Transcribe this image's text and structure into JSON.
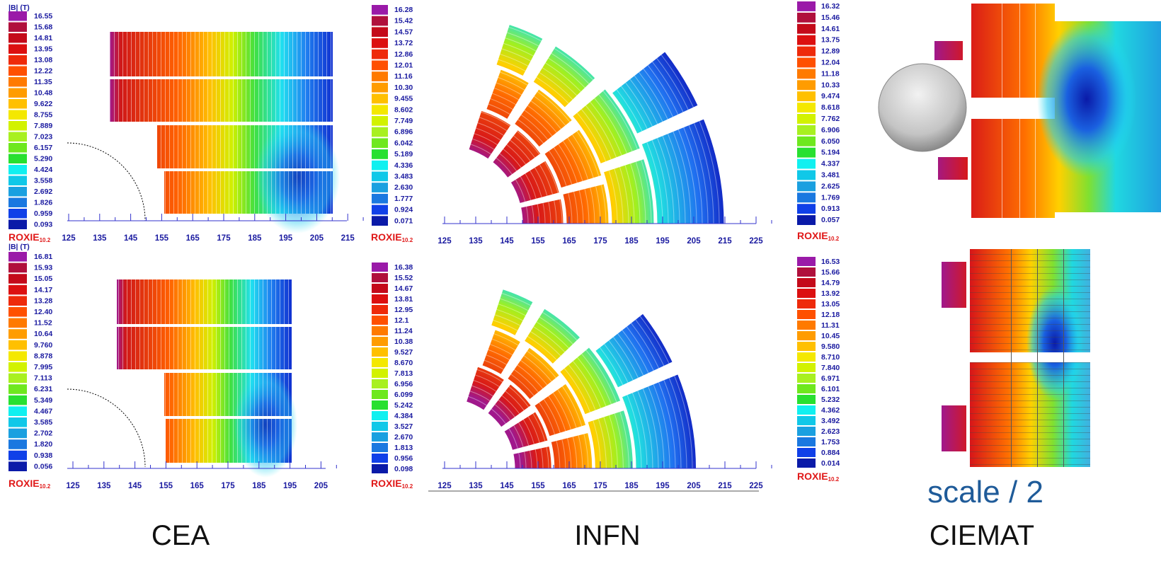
{
  "cea": {
    "top": {
      "legend_title": "|B|  (T)",
      "legend": [
        "16.55",
        "15.68",
        "14.81",
        "13.95",
        "13.08",
        "12.22",
        "11.35",
        "10.48",
        "9.622",
        "8.755",
        "7.889",
        "7.023",
        "6.157",
        "5.290",
        "4.424",
        "3.558",
        "2.692",
        "1.826",
        "0.959",
        "0.093"
      ],
      "axis": [
        125,
        135,
        145,
        155,
        165,
        175,
        185,
        195,
        205,
        215
      ],
      "brand": "ROXIE",
      "version": "10.2"
    },
    "bottom": {
      "legend_title": "|B|  (T)",
      "legend": [
        "16.81",
        "15.93",
        "15.05",
        "14.17",
        "13.28",
        "12.40",
        "11.52",
        "10.64",
        "9.760",
        "8.878",
        "7.995",
        "7.113",
        "6.231",
        "5.349",
        "4.467",
        "3.585",
        "2.702",
        "1.820",
        "0.938",
        "0.056"
      ],
      "axis": [
        125,
        135,
        145,
        155,
        165,
        175,
        185,
        195,
        205
      ],
      "brand": "ROXIE",
      "version": "10.2"
    },
    "label": "CEA"
  },
  "infn": {
    "top": {
      "legend": [
        "16.28",
        "15.42",
        "14.57",
        "13.72",
        "12.86",
        "12.01",
        "11.16",
        "10.30",
        "9.455",
        "8.602",
        "7.749",
        "6.896",
        "6.042",
        "5.189",
        "4.336",
        "3.483",
        "2.630",
        "1.777",
        "0.924",
        "0.071"
      ],
      "axis": [
        125,
        135,
        145,
        155,
        165,
        175,
        185,
        195,
        205,
        215,
        225
      ],
      "brand": "ROXIE",
      "version": "10.2"
    },
    "bottom": {
      "legend": [
        "16.38",
        "15.52",
        "14.67",
        "13.81",
        "12.95",
        "12.1",
        "11.24",
        "10.38",
        "9.527",
        "8.670",
        "7.813",
        "6.956",
        "6.099",
        "5.242",
        "4.384",
        "3.527",
        "2.670",
        "1.813",
        "0.956",
        "0.098"
      ],
      "axis": [
        125,
        135,
        145,
        155,
        165,
        175,
        185,
        195,
        205,
        215,
        225
      ],
      "brand": "ROXIE",
      "version": "10.2"
    },
    "label": "INFN"
  },
  "ciemat": {
    "top": {
      "legend": [
        "16.32",
        "15.46",
        "14.61",
        "13.75",
        "12.89",
        "12.04",
        "11.18",
        "10.33",
        "9.474",
        "8.618",
        "7.762",
        "6.906",
        "6.050",
        "5.194",
        "4.337",
        "3.481",
        "2.625",
        "1.769",
        "0.913",
        "0.057"
      ],
      "brand": "ROXIE",
      "version": "10.2"
    },
    "bottom": {
      "legend": [
        "16.53",
        "15.66",
        "14.79",
        "13.92",
        "13.05",
        "12.18",
        "11.31",
        "10.45",
        "9.580",
        "8.710",
        "7.840",
        "6.971",
        "6.101",
        "5.232",
        "4.362",
        "3.492",
        "2.623",
        "1.753",
        "0.884",
        "0.014"
      ],
      "brand": "ROXIE",
      "version": "10.2"
    },
    "note": "scale / 2",
    "label": "CIEMAT"
  }
}
